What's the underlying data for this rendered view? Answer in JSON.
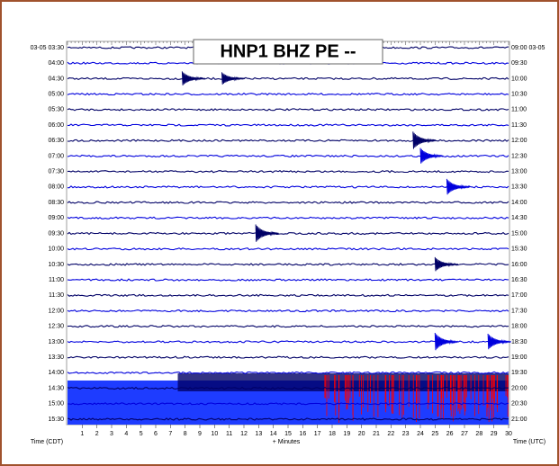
{
  "chart_data": {
    "type": "helicorder",
    "title": "HNP1 BHZ PE --",
    "x_label": "+ Minutes",
    "left_axis_label": "Time (CDT)",
    "right_axis_label": "Time (UTC)",
    "categories": [
      "03-05 03:30",
      "04:00",
      "04:30",
      "05:00",
      "05:30",
      "06:00",
      "06:30",
      "07:00",
      "07:30",
      "08:00",
      "08:30",
      "09:00",
      "09:30",
      "10:00",
      "10:30",
      "11:00",
      "11:30",
      "12:00",
      "12:30",
      "13:00",
      "13:30",
      "14:00",
      "14:30",
      "15:00",
      "15:30"
    ],
    "right_labels": [
      "09:00 03-05",
      "09:30",
      "10:00",
      "10:30",
      "11:00",
      "11:30",
      "12:00",
      "12:30",
      "13:00",
      "13:30",
      "14:00",
      "14:30",
      "15:00",
      "15:30",
      "16:00",
      "16:30",
      "17:00",
      "17:30",
      "18:00",
      "18:30",
      "19:00",
      "19:30",
      "20:00",
      "20:30",
      "21:00"
    ],
    "xlim": [
      0,
      30
    ],
    "xticks": [
      1,
      2,
      3,
      4,
      5,
      6,
      7,
      8,
      9,
      10,
      11,
      12,
      13,
      14,
      15,
      16,
      17,
      18,
      19,
      20,
      21,
      22,
      23,
      24,
      25,
      26,
      27,
      28,
      29,
      30
    ],
    "colors": [
      "#000066",
      "#0000dd"
    ]
  }
}
